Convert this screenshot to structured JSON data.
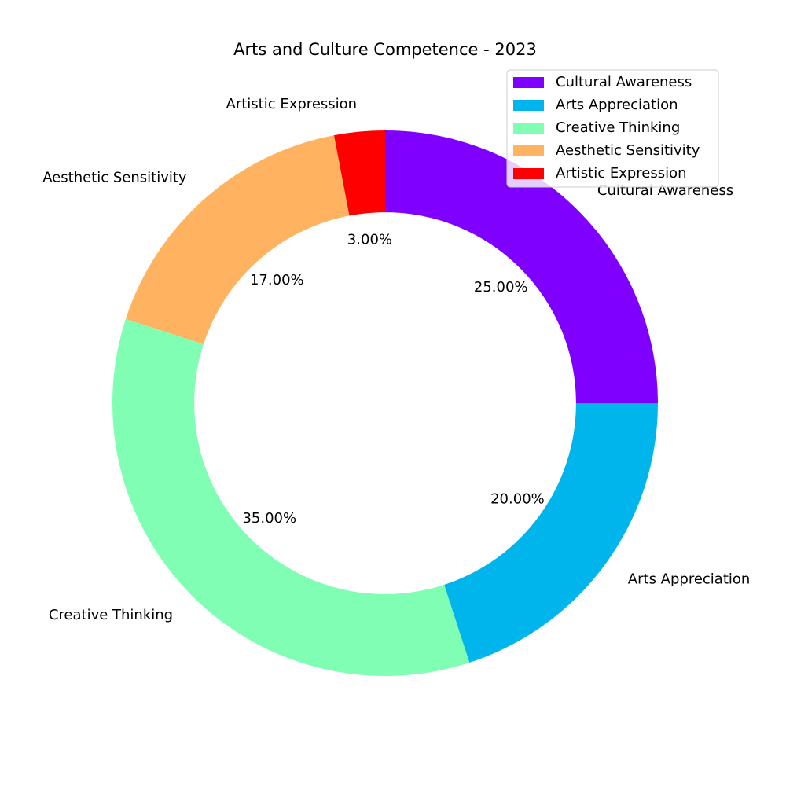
{
  "chart_data": {
    "type": "pie",
    "variant": "donut",
    "title": "Arts and Culture Competence - 2023",
    "start_angle_deg": 90,
    "direction": "clockwise",
    "legend_position": "top-right",
    "slices": [
      {
        "label": "Cultural Awareness",
        "value": 25,
        "pct_label": "25.00%",
        "color": "#8000ff"
      },
      {
        "label": "Arts Appreciation",
        "value": 20,
        "pct_label": "20.00%",
        "color": "#00b5eb"
      },
      {
        "label": "Creative Thinking",
        "value": 35,
        "pct_label": "35.00%",
        "color": "#80ffb4"
      },
      {
        "label": "Aesthetic Sensitivity",
        "value": 17,
        "pct_label": "17.00%",
        "color": "#ffb360"
      },
      {
        "label": "Artistic Expression",
        "value": 3,
        "pct_label": "3.00%",
        "color": "#ff0000"
      }
    ]
  }
}
